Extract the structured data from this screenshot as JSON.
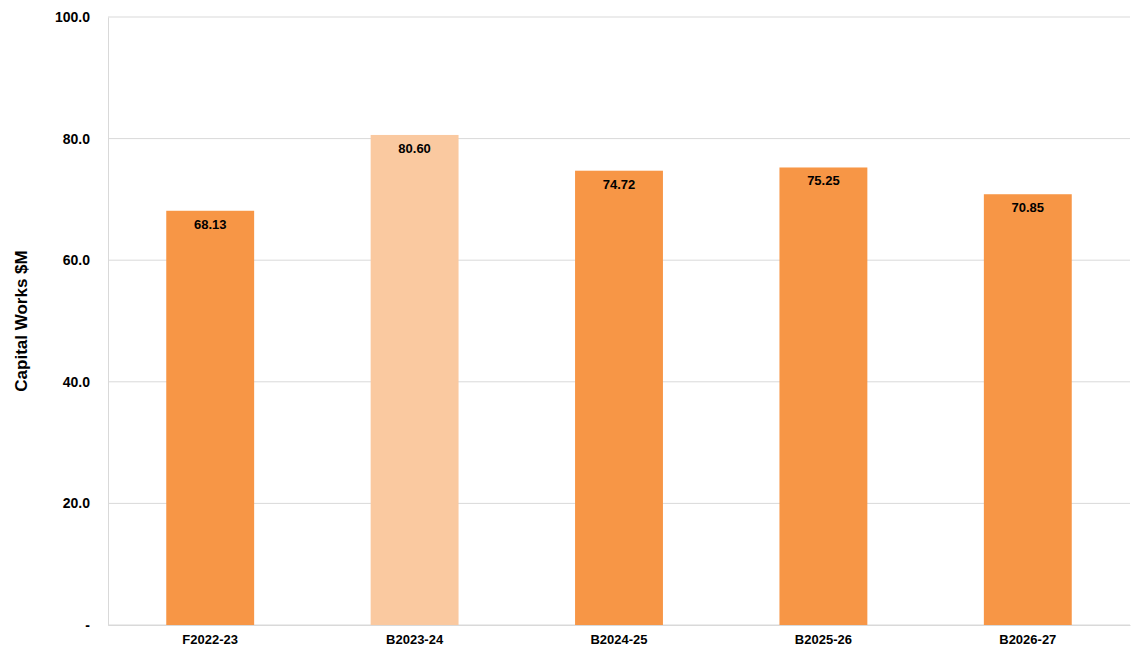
{
  "chart_data": {
    "type": "bar",
    "y_label": "Capital Works $M",
    "categories": [
      "F2022-23",
      "B2023-24",
      "B2024-25",
      "B2025-26",
      "B2026-27"
    ],
    "values": [
      68.13,
      80.6,
      74.72,
      75.25,
      70.85
    ],
    "value_labels": [
      "68.13",
      "80.60",
      "74.72",
      "75.25",
      "70.85"
    ],
    "colors": [
      "#f79646",
      "#fac9a0",
      "#f79646",
      "#f79646",
      "#f79646"
    ],
    "ylim": [
      0,
      100
    ],
    "yticks": [
      {
        "value": 0,
        "label": "-"
      },
      {
        "value": 20,
        "label": "20.0"
      },
      {
        "value": 40,
        "label": "40.0"
      },
      {
        "value": 60,
        "label": "60.0"
      },
      {
        "value": 80,
        "label": "80.0"
      },
      {
        "value": 100,
        "label": "100.0"
      }
    ],
    "grid": true,
    "data_labels": true
  }
}
